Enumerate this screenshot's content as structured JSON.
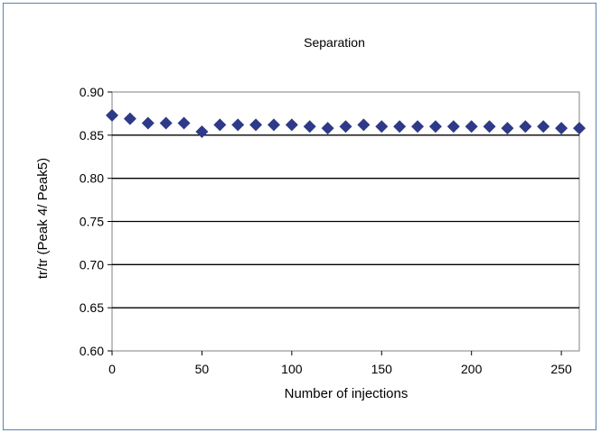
{
  "chart_data": {
    "type": "scatter",
    "title": "Separation",
    "xlabel": "Number of injections",
    "ylabel": "tr/tr (Peak 4/ Peak5)",
    "xlim": [
      0,
      260
    ],
    "ylim": [
      0.6,
      0.9
    ],
    "xticks": [
      "0",
      "50",
      "100",
      "150",
      "200",
      "250"
    ],
    "yticks": [
      "0.60",
      "0.65",
      "0.70",
      "0.75",
      "0.80",
      "0.85",
      "0.90"
    ],
    "grid": "horizontal",
    "legend": "none",
    "marker": "diamond",
    "series": [
      {
        "color": "#2e3a87",
        "x": [
          0,
          10,
          20,
          30,
          40,
          50,
          60,
          70,
          80,
          90,
          100,
          110,
          120,
          130,
          140,
          150,
          160,
          170,
          180,
          190,
          200,
          210,
          220,
          230,
          240,
          250,
          260
        ],
        "y": [
          0.873,
          0.869,
          0.864,
          0.864,
          0.864,
          0.854,
          0.862,
          0.862,
          0.862,
          0.862,
          0.862,
          0.86,
          0.858,
          0.86,
          0.862,
          0.86,
          0.86,
          0.86,
          0.86,
          0.86,
          0.86,
          0.86,
          0.858,
          0.86,
          0.86,
          0.858,
          0.858
        ]
      }
    ]
  }
}
